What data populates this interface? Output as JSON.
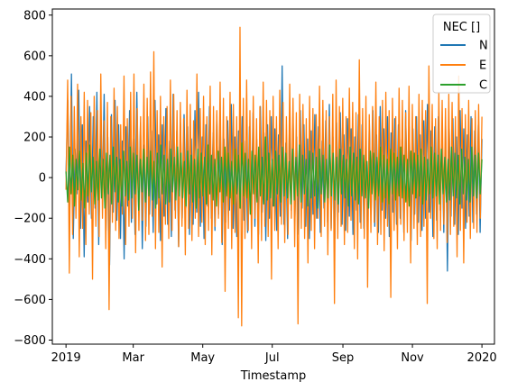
{
  "chart_data": {
    "type": "line",
    "title": "",
    "xlabel": "Timestamp",
    "ylabel": "",
    "x_range": [
      "2018-12-20",
      "2020-01-12"
    ],
    "x_ticks": [
      {
        "date": "2019-01-01",
        "label": "2019"
      },
      {
        "date": "2019-03-01",
        "label": "Mar"
      },
      {
        "date": "2019-05-01",
        "label": "May"
      },
      {
        "date": "2019-07-01",
        "label": "Jul"
      },
      {
        "date": "2019-09-01",
        "label": "Sep"
      },
      {
        "date": "2019-11-01",
        "label": "Nov"
      },
      {
        "date": "2020-01-01",
        "label": "2020"
      }
    ],
    "ylim": [
      -820,
      830
    ],
    "y_ticks": [
      -800,
      -600,
      -400,
      -200,
      0,
      200,
      400,
      600,
      800
    ],
    "grid": false,
    "legend": {
      "title": "NEC []",
      "placement": "top-right"
    },
    "series": [
      {
        "name": "N",
        "color": "#1f77b4",
        "x_start": "2019-01-01",
        "x_end": "2020-01-01",
        "values": [
          20,
          380,
          -220,
          510,
          -300,
          140,
          -80,
          430,
          -250,
          260,
          -390,
          180,
          -120,
          350,
          -200,
          300,
          -150,
          420,
          -330,
          240,
          -90,
          410,
          -260,
          200,
          -430,
          310,
          -170,
          380,
          -210,
          260,
          -300,
          180,
          -400,
          250,
          -140,
          330,
          -220,
          190,
          -280,
          420,
          -160,
          270,
          -350,
          160,
          -240,
          300,
          -180,
          230,
          -270,
          380,
          -130,
          210,
          -310,
          260,
          -190,
          340,
          -230,
          180,
          -290,
          410,
          -160,
          230,
          -340,
          270,
          -200,
          310,
          -150,
          250,
          -280,
          190,
          -230,
          330,
          -170,
          420,
          -240,
          200,
          -300,
          260,
          -140,
          350,
          -200,
          220,
          -260,
          310,
          -180,
          240,
          -330,
          190,
          -220,
          280,
          -160,
          360,
          -250,
          200,
          -290,
          230,
          -150,
          300,
          -210,
          180,
          -270,
          250,
          -130,
          320,
          -240,
          190,
          -280,
          350,
          -170,
          220,
          -310,
          260,
          -200,
          300,
          -140,
          240,
          -260,
          210,
          -190,
          550,
          -230,
          170,
          -300,
          240,
          -160,
          290,
          -210,
          200,
          -280,
          330,
          -150,
          260,
          -240,
          190,
          -300,
          230,
          -180,
          310,
          -200,
          250,
          -270,
          180,
          -150,
          280,
          -220,
          360,
          -250,
          200,
          -300,
          270,
          -170,
          320,
          -230,
          210,
          -260,
          290,
          -190,
          240,
          -280,
          200,
          -160,
          310,
          -220,
          260,
          -250,
          190,
          -300,
          280,
          -180,
          330,
          -240,
          210,
          -270,
          350,
          -160,
          240,
          -200,
          300,
          -290,
          220,
          -170,
          290,
          -230,
          260,
          -200,
          190,
          -270,
          330,
          -150,
          250,
          -310,
          240,
          -180,
          300,
          -220,
          210,
          -260,
          280,
          -200,
          360,
          -170,
          230,
          -290,
          250,
          -210,
          300,
          -160,
          200,
          -270,
          260,
          -460,
          240,
          -190,
          290,
          -230,
          200,
          -280,
          330,
          -150,
          240,
          -250,
          210,
          -190,
          300,
          -220,
          230,
          -180,
          260,
          -270,
          190
        ]
      },
      {
        "name": "E",
        "color": "#ff7f0e",
        "x_start": "2019-01-01",
        "x_end": "2020-01-01",
        "values": [
          -60,
          480,
          -470,
          400,
          -280,
          350,
          -200,
          460,
          -390,
          300,
          -250,
          420,
          -330,
          380,
          -180,
          320,
          -500,
          400,
          -240,
          330,
          -290,
          510,
          -200,
          280,
          -350,
          370,
          -650,
          300,
          -220,
          440,
          -260,
          350,
          -300,
          260,
          -180,
          500,
          -330,
          290,
          -240,
          420,
          -200,
          510,
          -370,
          340,
          -260,
          300,
          -210,
          460,
          -310,
          390,
          -280,
          520,
          -190,
          620,
          -350,
          330,
          -270,
          400,
          -440,
          300,
          -230,
          350,
          -300,
          480,
          -260,
          410,
          -200,
          330,
          -340,
          370,
          -240,
          290,
          -380,
          430,
          -250,
          360,
          -310,
          280,
          -200,
          510,
          -290,
          340,
          -220,
          400,
          -330,
          300,
          -260,
          450,
          -380,
          350,
          -240,
          330,
          -200,
          470,
          -320,
          390,
          -560,
          300,
          -250,
          420,
          -350,
          360,
          -270,
          300,
          -690,
          740,
          -730,
          390,
          -300,
          480,
          -260,
          330,
          -350,
          400,
          -200,
          290,
          -420,
          350,
          -310,
          470,
          -240,
          380,
          -290,
          330,
          -500,
          400,
          -260,
          300,
          -350,
          430,
          -230,
          370,
          -320,
          300,
          -280,
          460,
          -200,
          390,
          -340,
          320,
          -720,
          410,
          -250,
          360,
          -300,
          290,
          -420,
          400,
          -260,
          340,
          -350,
          310,
          -200,
          450,
          -290,
          380,
          -240,
          330,
          -380,
          300,
          -260,
          410,
          -620,
          480,
          -300,
          350,
          -240,
          390,
          -330,
          300,
          -270,
          440,
          -210,
          370,
          -350,
          320,
          -400,
          580,
          -250,
          340,
          -300,
          400,
          -540,
          310,
          -270,
          350,
          -220,
          470,
          -330,
          300,
          -280,
          380,
          -360,
          420,
          -240,
          330,
          -590,
          390,
          -260,
          300,
          -350,
          440,
          -230,
          380,
          -310,
          320,
          -270,
          450,
          -420,
          360,
          -250,
          300,
          -330,
          410,
          -290,
          380,
          -240,
          330,
          -620,
          550,
          -200,
          360,
          -300,
          290,
          -350,
          420,
          -260,
          380,
          -230,
          340,
          -320,
          410,
          -280,
          370,
          -240,
          300,
          -390,
          500,
          -260,
          340,
          -420,
          310,
          -220,
          380,
          -300,
          290,
          -250,
          330,
          -270,
          360,
          -200,
          300
        ]
      },
      {
        "name": "C",
        "color": "#2ca02c",
        "x_start": "2019-01-01",
        "x_end": "2020-01-01",
        "values": [
          30,
          -120,
          150,
          -80,
          110,
          -140,
          90,
          -60,
          130,
          -110,
          70,
          -150,
          120,
          -90,
          160,
          -70,
          100,
          -130,
          80,
          -110,
          140,
          -100,
          90,
          -150,
          120,
          -80,
          110,
          -130,
          150,
          -70,
          100,
          -120,
          90,
          -140,
          130,
          -90,
          80,
          -110,
          150,
          -100,
          120,
          -80,
          110,
          -160,
          90,
          -70,
          140,
          -120,
          100,
          -90,
          130,
          -110,
          80,
          -150,
          120,
          -100,
          160,
          -80,
          110,
          -130,
          90,
          -120,
          140,
          -70,
          100,
          -110,
          150,
          -90,
          120,
          -100,
          80,
          -140,
          130,
          -80,
          110,
          -120,
          90,
          -150,
          140,
          -100,
          120,
          -90,
          100,
          -130,
          160,
          -80,
          110,
          -110,
          90,
          -140,
          130,
          -70,
          100,
          -120,
          150,
          -90,
          120,
          -100,
          80,
          -130,
          140,
          -80,
          110,
          -150,
          170,
          -90,
          120,
          -100,
          90,
          -180,
          130,
          -80,
          110,
          -120,
          150,
          -90,
          100,
          -130,
          200,
          -110,
          120,
          -100,
          90,
          -140,
          130,
          -80,
          110,
          -120,
          150,
          -90,
          120,
          -100,
          80,
          -130,
          140,
          -110,
          100,
          -90,
          160,
          -120,
          110,
          -80,
          90,
          -140,
          130,
          -100,
          120,
          -90,
          100,
          -150,
          140,
          -80,
          110,
          -120,
          90,
          -100,
          160,
          -90,
          120,
          -110,
          100,
          -130,
          140,
          -80,
          110,
          -100,
          90,
          -140,
          150,
          -90,
          120,
          -110,
          100,
          -130,
          140,
          -90,
          110,
          -100,
          80,
          -150,
          130,
          -80,
          120,
          -110,
          100,
          -90,
          150,
          -120,
          110,
          -100,
          90,
          -130,
          140,
          -80,
          120,
          -110,
          100,
          -90,
          150,
          -100,
          110,
          -120,
          90,
          -140,
          130,
          -80,
          120,
          -100,
          110,
          -90,
          140,
          -130,
          100,
          -110,
          90,
          -80,
          150,
          -100,
          120,
          -90,
          110,
          -130,
          140,
          -80,
          100,
          -120,
          90,
          -110,
          150,
          -90,
          120,
          -100,
          110,
          -130,
          140,
          -80,
          100,
          -110,
          90,
          -120,
          150,
          -90,
          110,
          -100,
          120,
          -80,
          90
        ]
      }
    ]
  }
}
